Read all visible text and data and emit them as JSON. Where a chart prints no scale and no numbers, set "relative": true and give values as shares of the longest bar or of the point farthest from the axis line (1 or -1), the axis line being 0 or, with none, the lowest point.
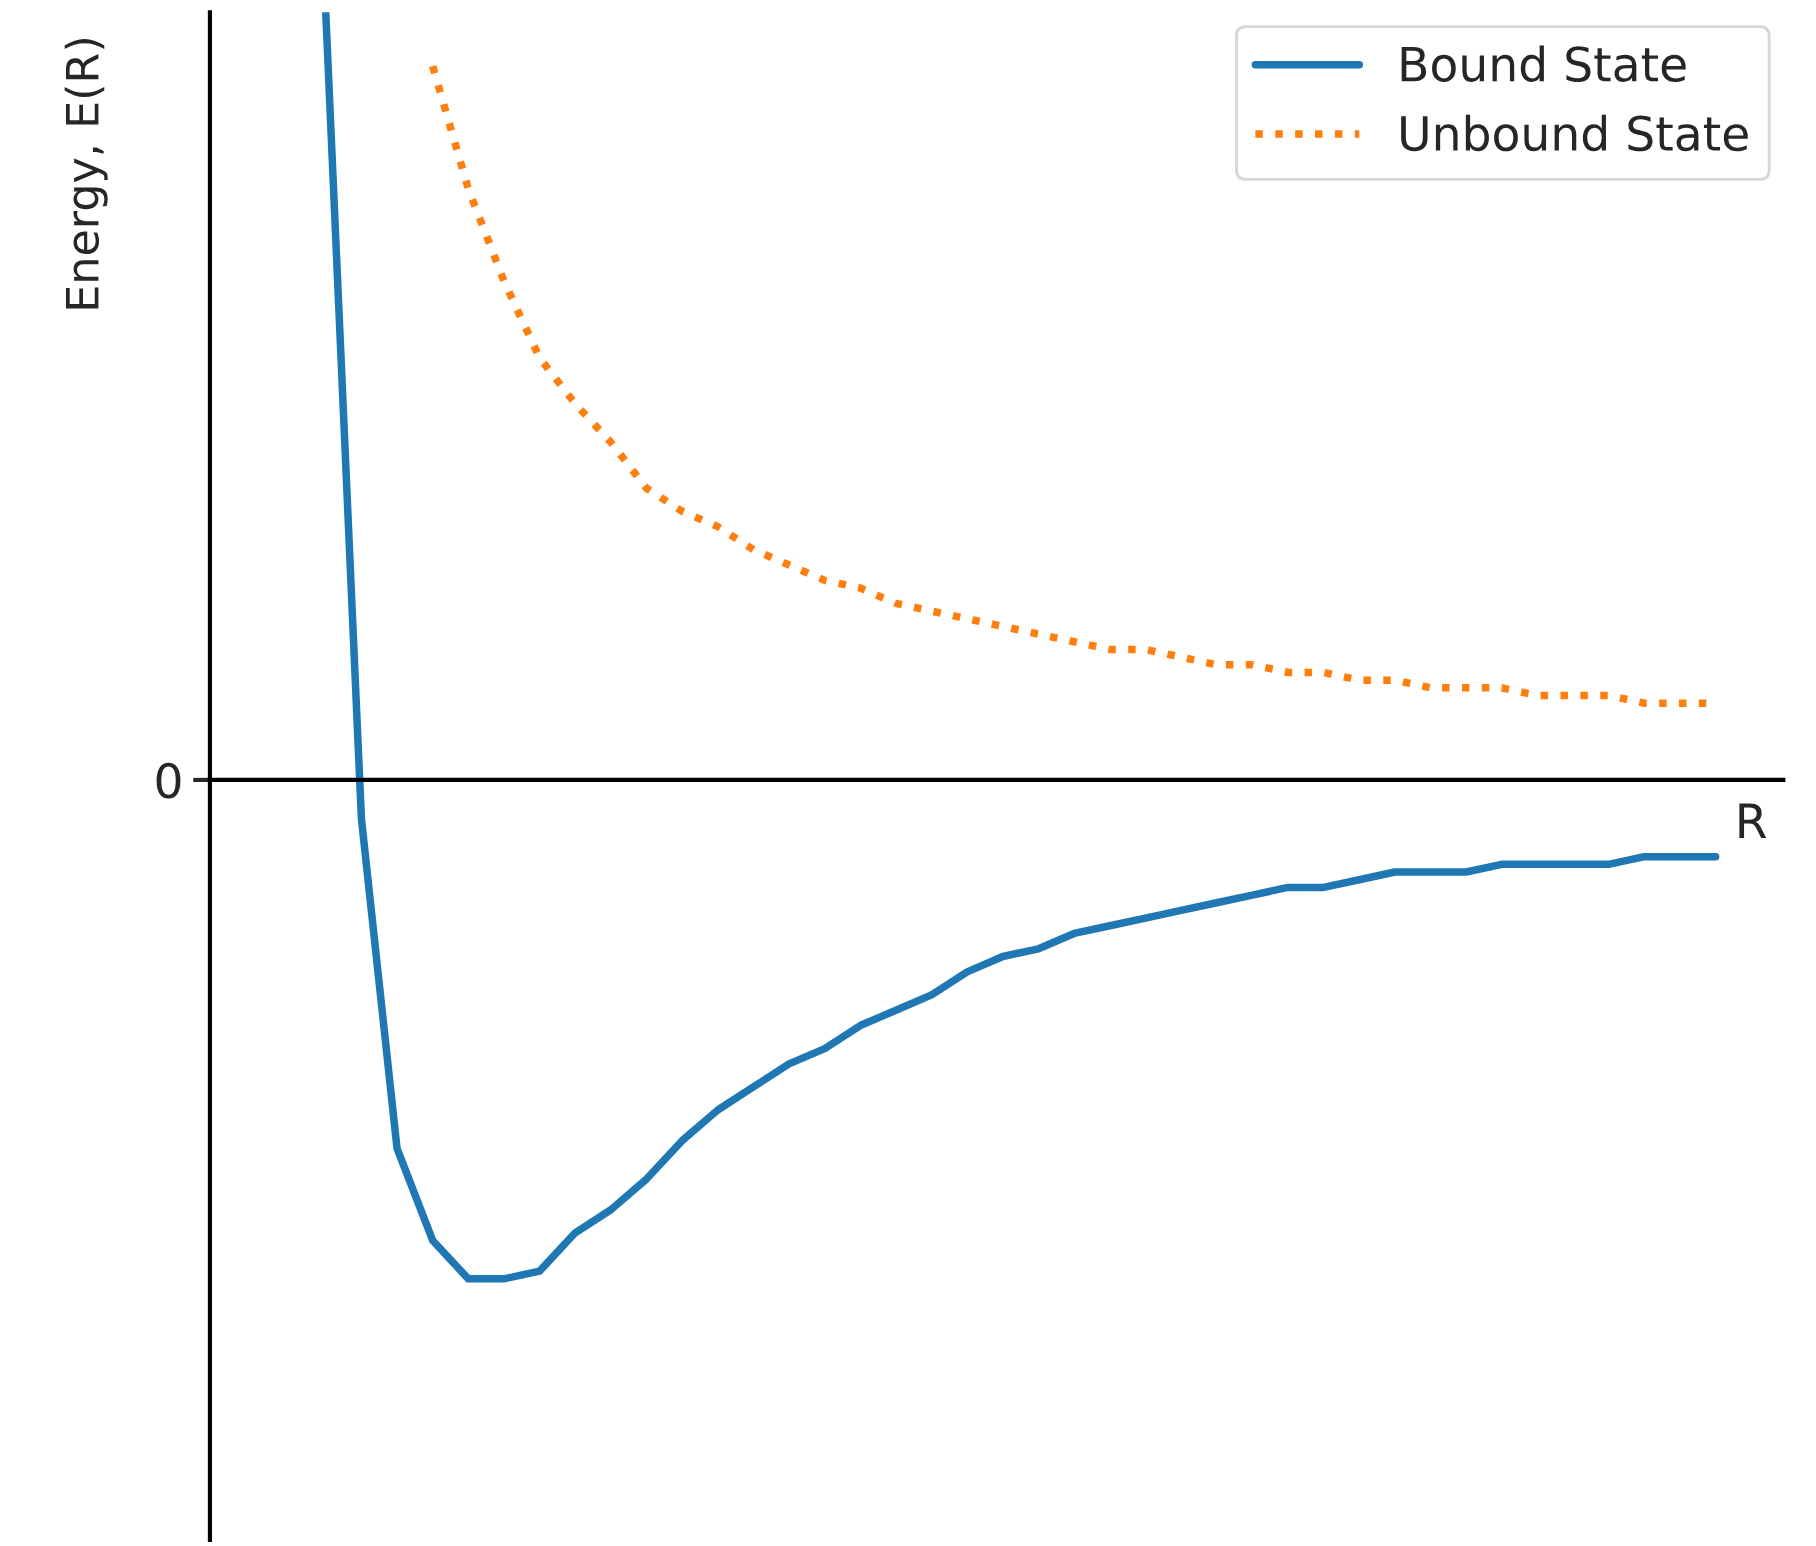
{
  "chart_data": {
    "type": "line",
    "relative": true,
    "xlabel": "R",
    "ylabel": "Energy, E(R)",
    "annotations": [
      "0"
    ],
    "legend": "top right",
    "categories": [
      null,
      null,
      null,
      null,
      null,
      null,
      null,
      null,
      null,
      null,
      null,
      null,
      null,
      null,
      null,
      null,
      null,
      null,
      null,
      null,
      null,
      null,
      null,
      null,
      null,
      null,
      null,
      null,
      null,
      null,
      null,
      null,
      null,
      null,
      null,
      null,
      null,
      null,
      null,
      null
    ],
    "series": [
      {
        "name": "Bound State",
        "color": "#1f77b4",
        "line_style": "solid",
        "values": [
          1.0,
          -0.05,
          -0.48,
          -0.6,
          -0.65,
          -0.65,
          -0.64,
          -0.59,
          -0.56,
          -0.52,
          -0.47,
          -0.43,
          -0.4,
          -0.37,
          -0.35,
          -0.32,
          -0.3,
          -0.28,
          -0.25,
          -0.23,
          -0.22,
          -0.2,
          -0.19,
          -0.18,
          -0.17,
          -0.16,
          -0.15,
          -0.14,
          -0.14,
          -0.13,
          -0.12,
          -0.12,
          -0.12,
          -0.11,
          -0.11,
          -0.11,
          -0.11,
          -0.1,
          -0.1,
          -0.1
        ]
      },
      {
        "name": "Unbound State",
        "color": "#ff7f0e",
        "line_style": "dotted",
        "values": [
          null,
          null,
          null,
          0.93,
          0.77,
          0.65,
          0.55,
          0.49,
          0.44,
          0.38,
          0.35,
          0.33,
          0.3,
          0.28,
          0.26,
          0.25,
          0.23,
          0.22,
          0.21,
          0.2,
          0.19,
          0.18,
          0.17,
          0.17,
          0.16,
          0.15,
          0.15,
          0.14,
          0.14,
          0.13,
          0.13,
          0.12,
          0.12,
          0.12,
          0.11,
          0.11,
          0.11,
          0.1,
          0.1,
          0.1
        ]
      }
    ]
  }
}
